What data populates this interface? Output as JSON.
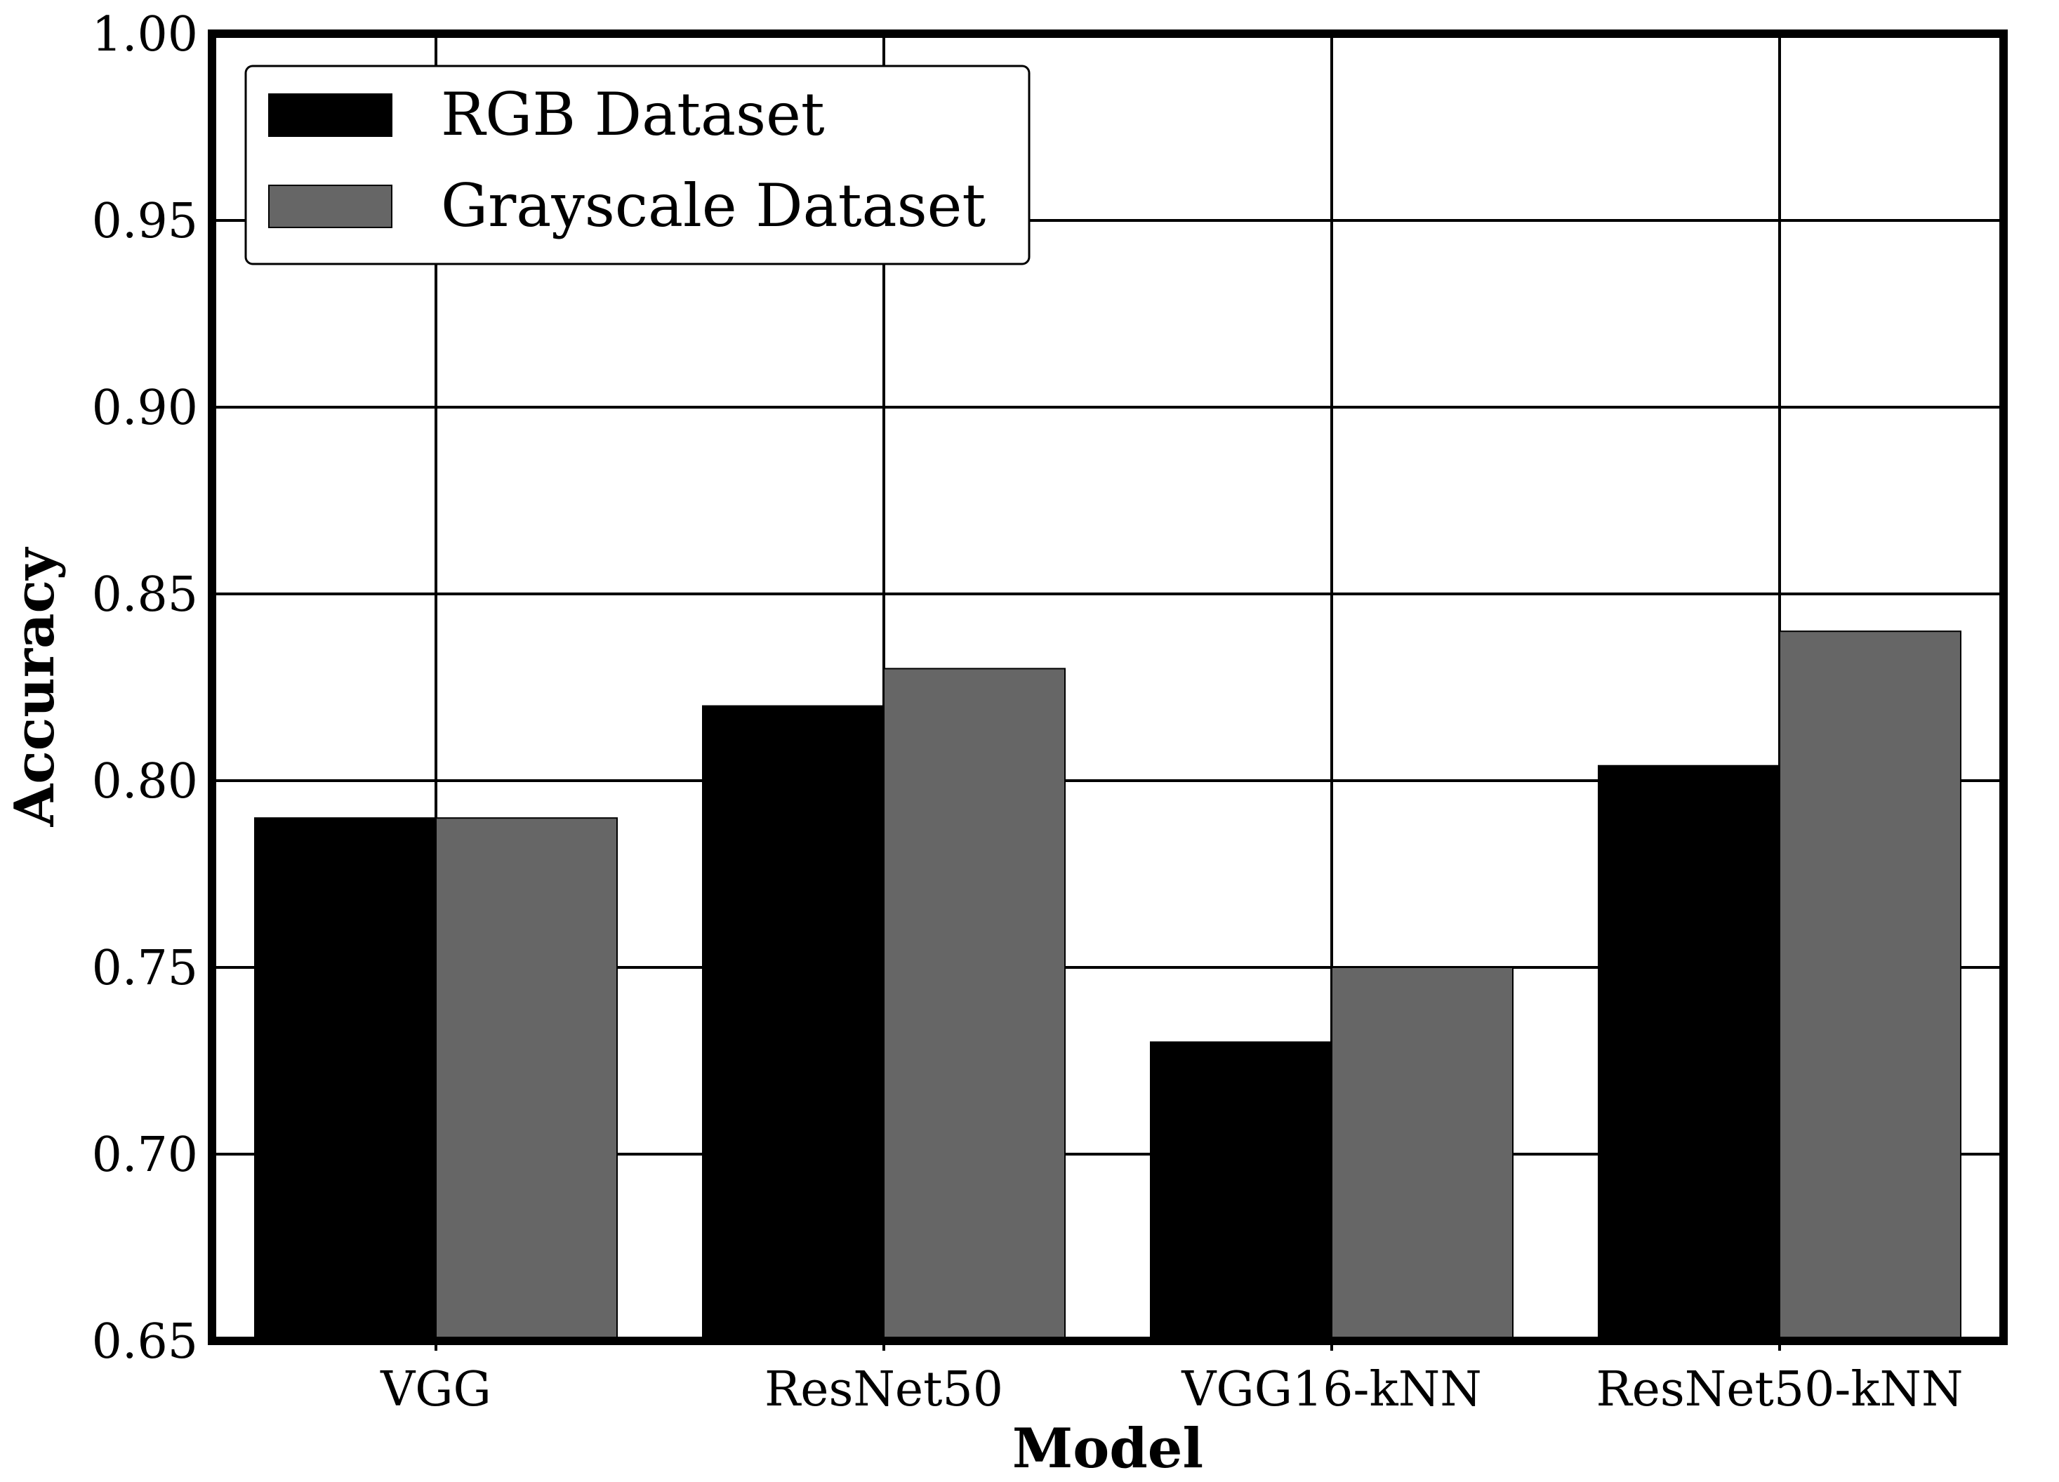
{
  "chart_data": {
    "type": "bar",
    "categories": [
      "VGG",
      "ResNet50",
      "VGG16-kNN",
      "ResNet50-kNN"
    ],
    "series": [
      {
        "name": "RGB Dataset",
        "values": [
          0.79,
          0.82,
          0.73,
          0.804
        ],
        "color": "#000000"
      },
      {
        "name": "Grayscale Dataset",
        "values": [
          0.79,
          0.83,
          0.75,
          0.84
        ],
        "color": "#666666"
      }
    ],
    "xlabel": "Model",
    "ylabel": "Accuracy",
    "ylim": [
      0.65,
      1.0
    ],
    "yticks": [
      "0.65",
      "0.70",
      "0.75",
      "0.80",
      "0.85",
      "0.90",
      "0.95",
      "1.00"
    ],
    "grid": true,
    "legend_position": "top-left"
  }
}
